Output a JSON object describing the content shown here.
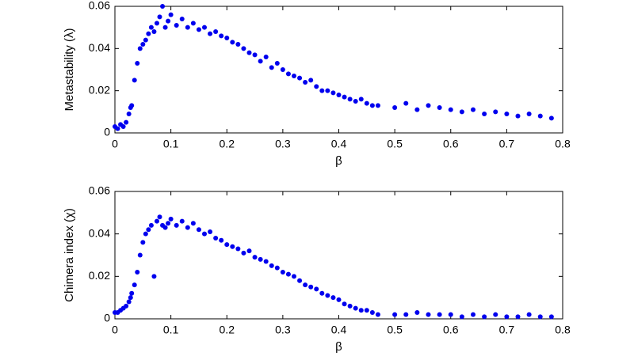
{
  "chart_data": [
    {
      "type": "scatter",
      "xlabel": "β",
      "ylabel": "Metastability (λ)",
      "color": "#0000ee",
      "xlim": [
        0,
        0.8
      ],
      "xticks": [
        0,
        0.1,
        0.2,
        0.3,
        0.4,
        0.5,
        0.6,
        0.7,
        0.8
      ],
      "ylim": [
        0,
        0.06
      ],
      "yticks": [
        0,
        0.02,
        0.04,
        0.06
      ],
      "x": [
        0,
        0.005,
        0.01,
        0.015,
        0.02,
        0.025,
        0.028,
        0.03,
        0.035,
        0.04,
        0.045,
        0.05,
        0.055,
        0.06,
        0.065,
        0.07,
        0.075,
        0.08,
        0.085,
        0.09,
        0.095,
        0.1,
        0.11,
        0.12,
        0.13,
        0.14,
        0.15,
        0.16,
        0.17,
        0.18,
        0.19,
        0.2,
        0.21,
        0.22,
        0.23,
        0.24,
        0.25,
        0.26,
        0.27,
        0.28,
        0.29,
        0.3,
        0.31,
        0.32,
        0.33,
        0.34,
        0.35,
        0.36,
        0.37,
        0.38,
        0.39,
        0.4,
        0.41,
        0.42,
        0.43,
        0.44,
        0.45,
        0.46,
        0.47,
        0.5,
        0.52,
        0.54,
        0.56,
        0.58,
        0.6,
        0.62,
        0.64,
        0.66,
        0.68,
        0.7,
        0.72,
        0.74,
        0.76,
        0.78
      ],
      "values": [
        0.003,
        0.002,
        0.004,
        0.003,
        0.005,
        0.009,
        0.012,
        0.013,
        0.025,
        0.033,
        0.04,
        0.042,
        0.044,
        0.047,
        0.05,
        0.048,
        0.052,
        0.055,
        0.06,
        0.05,
        0.053,
        0.056,
        0.051,
        0.054,
        0.05,
        0.052,
        0.049,
        0.05,
        0.047,
        0.048,
        0.046,
        0.045,
        0.043,
        0.042,
        0.04,
        0.038,
        0.037,
        0.034,
        0.036,
        0.031,
        0.033,
        0.03,
        0.028,
        0.027,
        0.026,
        0.024,
        0.025,
        0.022,
        0.02,
        0.02,
        0.019,
        0.018,
        0.017,
        0.016,
        0.015,
        0.016,
        0.014,
        0.013,
        0.013,
        0.012,
        0.014,
        0.011,
        0.013,
        0.012,
        0.011,
        0.01,
        0.011,
        0.009,
        0.01,
        0.009,
        0.008,
        0.009,
        0.008,
        0.007
      ]
    },
    {
      "type": "scatter",
      "xlabel": "β",
      "ylabel": "Chimera index (χ)",
      "color": "#0000ee",
      "xlim": [
        0,
        0.8
      ],
      "xticks": [
        0,
        0.1,
        0.2,
        0.3,
        0.4,
        0.5,
        0.6,
        0.7,
        0.8
      ],
      "ylim": [
        0,
        0.06
      ],
      "yticks": [
        0,
        0.02,
        0.04,
        0.06
      ],
      "x": [
        0,
        0.005,
        0.01,
        0.015,
        0.02,
        0.025,
        0.028,
        0.03,
        0.035,
        0.04,
        0.045,
        0.05,
        0.055,
        0.06,
        0.065,
        0.07,
        0.075,
        0.08,
        0.085,
        0.09,
        0.095,
        0.1,
        0.11,
        0.12,
        0.13,
        0.14,
        0.15,
        0.16,
        0.17,
        0.18,
        0.19,
        0.2,
        0.21,
        0.22,
        0.23,
        0.24,
        0.25,
        0.26,
        0.27,
        0.28,
        0.29,
        0.3,
        0.31,
        0.32,
        0.33,
        0.34,
        0.35,
        0.36,
        0.37,
        0.38,
        0.39,
        0.4,
        0.41,
        0.42,
        0.43,
        0.44,
        0.45,
        0.46,
        0.47,
        0.5,
        0.52,
        0.54,
        0.56,
        0.58,
        0.6,
        0.62,
        0.64,
        0.66,
        0.68,
        0.7,
        0.72,
        0.74,
        0.76,
        0.78
      ],
      "values": [
        0.003,
        0.003,
        0.004,
        0.005,
        0.006,
        0.008,
        0.01,
        0.012,
        0.016,
        0.022,
        0.03,
        0.036,
        0.04,
        0.042,
        0.044,
        0.02,
        0.046,
        0.048,
        0.044,
        0.043,
        0.045,
        0.047,
        0.044,
        0.046,
        0.043,
        0.045,
        0.042,
        0.04,
        0.041,
        0.038,
        0.037,
        0.035,
        0.034,
        0.033,
        0.031,
        0.032,
        0.029,
        0.028,
        0.027,
        0.025,
        0.024,
        0.022,
        0.021,
        0.02,
        0.018,
        0.016,
        0.015,
        0.014,
        0.012,
        0.011,
        0.01,
        0.009,
        0.007,
        0.006,
        0.005,
        0.004,
        0.004,
        0.003,
        0.002,
        0.002,
        0.002,
        0.003,
        0.002,
        0.002,
        0.002,
        0.001,
        0.002,
        0.001,
        0.002,
        0.001,
        0.001,
        0.002,
        0.001,
        0.001
      ]
    }
  ]
}
